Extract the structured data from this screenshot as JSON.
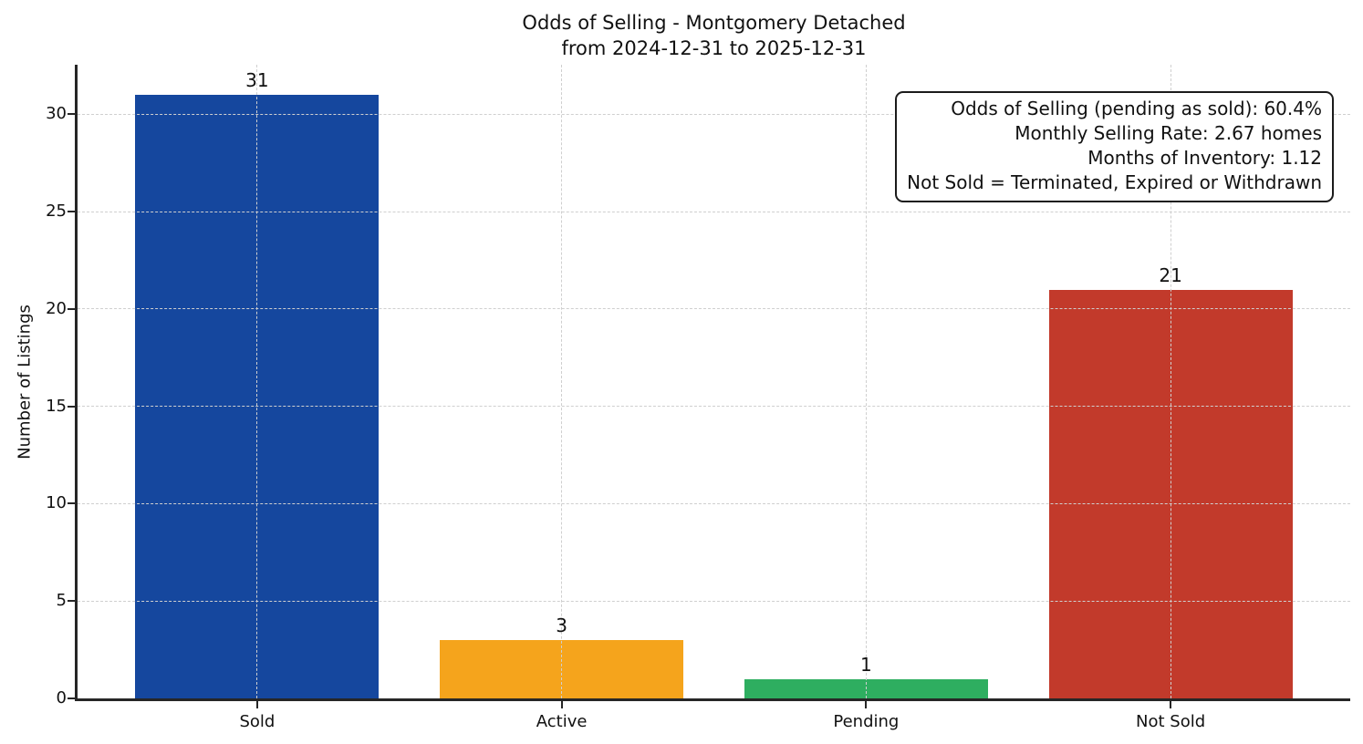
{
  "chart_data": {
    "type": "bar",
    "title": "Odds of Selling - Montgomery Detached\nfrom 2024-12-31 to 2025-12-31",
    "title_lines": [
      "Odds of Selling - Montgomery Detached",
      "from 2024-12-31 to 2025-12-31"
    ],
    "categories": [
      "Sold",
      "Active",
      "Pending",
      "Not Sold"
    ],
    "values": [
      31,
      3,
      1,
      21
    ],
    "bar_labels": [
      "31",
      "3",
      "1",
      "21"
    ],
    "bar_colors": [
      "#15479e",
      "#f5a41c",
      "#2eae60",
      "#c23a2b"
    ],
    "xlabel": "",
    "ylabel": "Number of Listings",
    "yticks": [
      0,
      5,
      10,
      15,
      20,
      25,
      30
    ],
    "ylim": [
      0,
      32.55
    ],
    "grid": true,
    "grid_style": "dashed",
    "legend": "none",
    "annotation": {
      "position": "top-right",
      "lines": [
        "Odds of Selling (pending as sold): 60.4%",
        "Monthly Selling Rate: 2.67 homes",
        "Months of Inventory: 1.12",
        "Not Sold = Terminated, Expired or Withdrawn"
      ]
    },
    "colors": {
      "background": "#ffffff",
      "axis": "#262626",
      "gridline": "#cfcfcf",
      "text": "#111111"
    }
  }
}
